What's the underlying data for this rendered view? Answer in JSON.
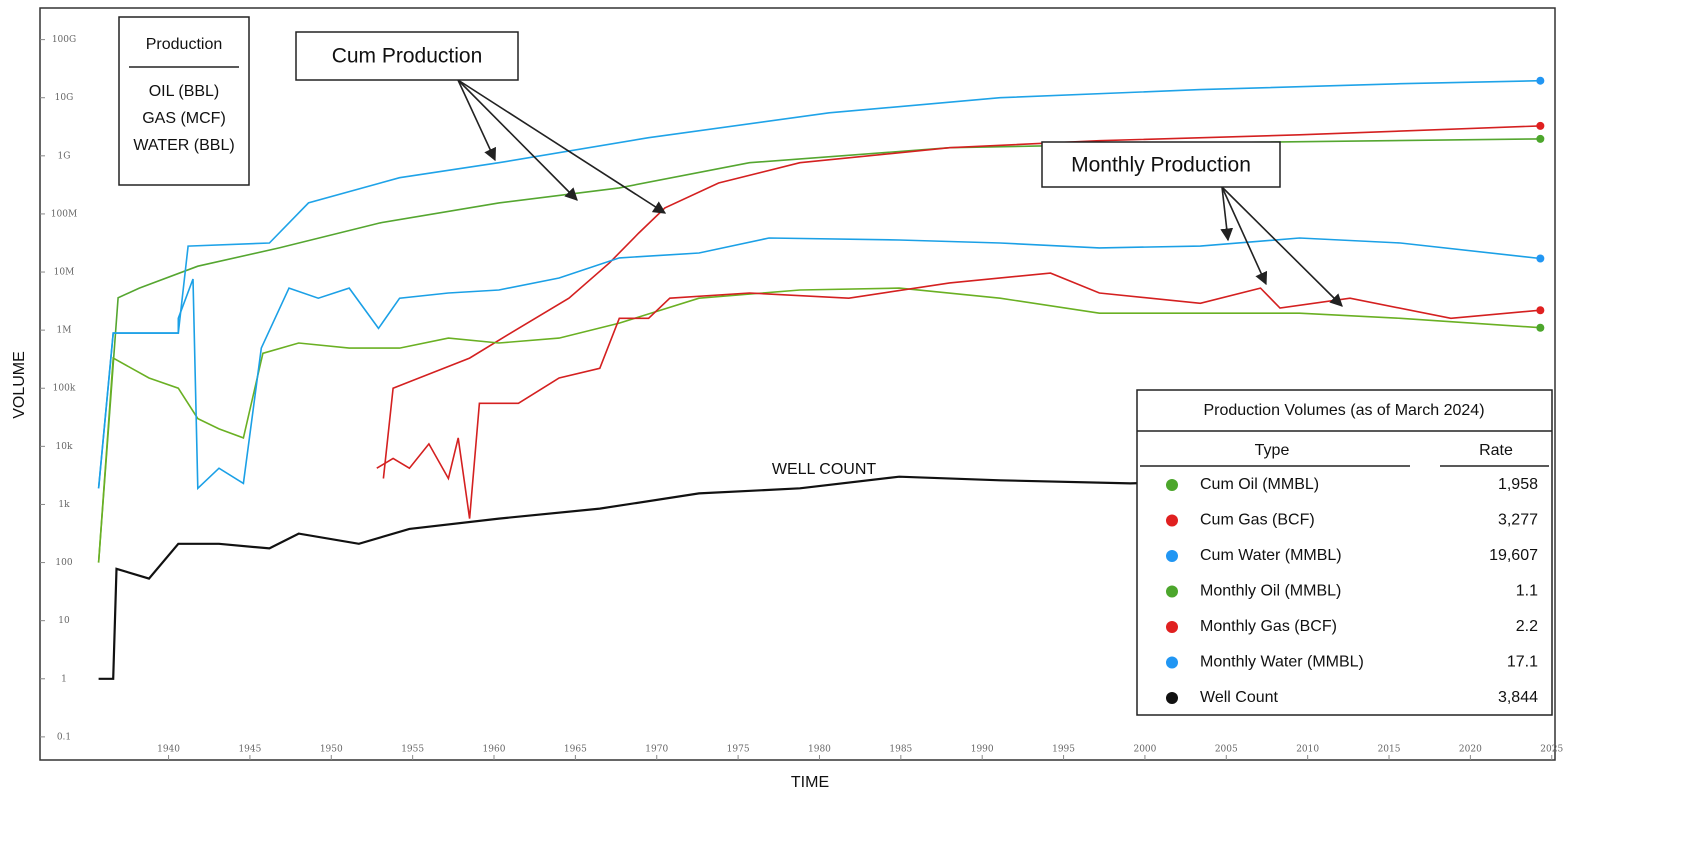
{
  "chart_data": {
    "type": "line",
    "y_label": "VOLUME",
    "x_label": "TIME",
    "log_y": true,
    "xlim": [
      1932.1,
      2025.2
    ],
    "ylim": [
      0.04,
      350000000000
    ],
    "xticks": [
      1940,
      1945,
      1950,
      1955,
      1960,
      1965,
      1970,
      1975,
      1980,
      1985,
      1990,
      1995,
      2000,
      2005,
      2010,
      2015,
      2020,
      2025
    ],
    "yticks": [
      0.1,
      1,
      10,
      100,
      {
        "value": 1000,
        "label": "1k"
      },
      {
        "value": 10000,
        "label": "10k"
      },
      {
        "value": 100000,
        "label": "100k"
      },
      {
        "value": 1000000,
        "label": "1M"
      },
      {
        "value": 10000000,
        "label": "10M"
      },
      {
        "value": 100000000,
        "label": "100M"
      },
      {
        "value": 1000000000,
        "label": "1G"
      },
      {
        "value": 10000000000,
        "label": "10G"
      },
      {
        "value": 100000000000,
        "label": "100G"
      }
    ],
    "legend": {
      "title": "Production",
      "items": [
        {
          "label": "OIL (BBL)",
          "color": "#a9c23f"
        },
        {
          "label": "GAS (MCF)",
          "color": "#b01818"
        },
        {
          "label": "WATER (BBL)",
          "color": "#1e9ee0"
        }
      ]
    },
    "annotations": [
      {
        "text": "Cum Production"
      },
      {
        "text": "Monthly Production"
      },
      {
        "text": "WELL COUNT"
      }
    ],
    "series": [
      {
        "name": "Cum Oil (MMBL)",
        "color": "#55a630",
        "marker_color": "#4ca62c",
        "x": [
          1935.7,
          1936.9,
          1938.2,
          1941.8,
          1946.8,
          1953,
          1960.3,
          1967.7,
          1975.7,
          1988,
          2003.4,
          2024.3
        ],
        "values": [
          100,
          3600000,
          5300000,
          12600000,
          26000000,
          70000000,
          155000000,
          280000000,
          760000000,
          1380000000,
          1670000000,
          1958000000
        ]
      },
      {
        "name": "Cum Gas (BCF)",
        "color": "#d42020",
        "marker_color": "#e02020",
        "x": [
          1953.2,
          1953.8,
          1958.5,
          1961.5,
          1964.6,
          1967.1,
          1968.9,
          1970.5,
          1973.8,
          1978.8,
          1988,
          1997.2,
          2009.5,
          2024.3
        ],
        "values": [
          2800,
          100000,
          330000,
          1070000,
          3550000,
          14400000,
          47000000,
          127000000,
          340000000,
          760000000,
          1380000000,
          1820000000,
          2300000000,
          3277000000
        ]
      },
      {
        "name": "Cum Water (MMBL)",
        "color": "#1fa3e8",
        "marker_color": "#2196f3",
        "x": [
          1935.7,
          1936.6,
          1940.6,
          1941.2,
          1946.2,
          1948.6,
          1954.2,
          1960.3,
          1969.5,
          1980.6,
          1991.1,
          2003.4,
          2015.7,
          2024.3
        ],
        "values": [
          1900,
          890000,
          890000,
          28000000,
          31600000,
          155000000,
          420000000,
          760000000,
          2050000000,
          5500000000,
          10000000000,
          13800000000,
          17400000000,
          19607000000
        ]
      },
      {
        "name": "Monthly Oil (MMBL)",
        "color": "#6ab023",
        "marker_color": "#4ca62c",
        "x": [
          1935.7,
          1936.6,
          1938.8,
          1940.6,
          1941.8,
          1943.1,
          1944.6,
          1945.8,
          1948,
          1951.1,
          1954.2,
          1957.2,
          1960.3,
          1964,
          1967.7,
          1972.6,
          1978.8,
          1984.9,
          1991.1,
          1997.2,
          2003.4,
          2009.5,
          2015.7,
          2024.3
        ],
        "values": [
          100,
          330000,
          150000,
          100000,
          30000,
          20000,
          14000,
          400000,
          600000,
          490000,
          490000,
          730000,
          600000,
          730000,
          1320000,
          3550000,
          4900000,
          5300000,
          3550000,
          1960000,
          1960000,
          1960000,
          1600000,
          1100000
        ]
      },
      {
        "name": "Monthly Gas (BCF)",
        "color": "#d42020",
        "marker_color": "#e02020",
        "x": [
          1952.8,
          1953.8,
          1954.8,
          1956,
          1957.2,
          1957.8,
          1958.5,
          1959.1,
          1961.5,
          1964,
          1966.5,
          1967.7,
          1969.5,
          1970.8,
          1975.7,
          1981.8,
          1988,
          1994.2,
          1997.2,
          2003.4,
          2007.1,
          2008.3,
          2012.6,
          2018.8,
          2024.3
        ],
        "values": [
          4200,
          6200,
          4200,
          11000,
          2800,
          14000,
          570,
          55000,
          55000,
          150000,
          220000,
          1600000,
          1600000,
          3550000,
          4350000,
          3550000,
          6500000,
          9600000,
          4350000,
          2900000,
          5300000,
          2400000,
          3550000,
          1600000,
          2200000
        ]
      },
      {
        "name": "Monthly Water (MMBL)",
        "color": "#1ba0e6",
        "marker_color": "#2196f3",
        "x": [
          1935.7,
          1936.6,
          1940.6,
          1940.6,
          1941.5,
          1941.8,
          1943.1,
          1944.6,
          1945.7,
          1947.4,
          1949.2,
          1951.1,
          1952.9,
          1954.2,
          1957.2,
          1960.3,
          1964,
          1967.7,
          1972.6,
          1976.9,
          1984.9,
          1991.1,
          1997.2,
          2003.4,
          2009.5,
          2015.7,
          2024.3
        ],
        "values": [
          1900,
          890000,
          890000,
          1600000,
          7600000,
          1900,
          4200,
          2300,
          490000,
          5300000,
          3550000,
          5300000,
          1070000,
          3550000,
          4350000,
          4900000,
          7900000,
          17500000,
          21300000,
          38600000,
          35600000,
          31600000,
          26000000,
          28000000,
          38600000,
          31600000,
          17100000
        ]
      },
      {
        "name": "Well Count",
        "color": "#111111",
        "marker_color": "#111111",
        "x": [
          1935.7,
          1936.6,
          1936.8,
          1938.8,
          1940.6,
          1943.1,
          1946.2,
          1948,
          1951.7,
          1954.8,
          1960.3,
          1966.5,
          1972.6,
          1978.8,
          1984.9,
          1991.1,
          1999.1,
          2024.3
        ],
        "values": [
          1,
          1,
          78,
          53,
          210,
          210,
          175,
          315,
          210,
          380,
          570,
          850,
          1550,
          1900,
          3000,
          2600,
          2300,
          3844
        ]
      }
    ],
    "table": {
      "title": "Production Volumes (as of March 2024)",
      "headers": [
        "Type",
        "Rate"
      ],
      "rates": [
        "1,958",
        "3,277",
        "19,607",
        "1.1",
        "2.2",
        "17.1",
        "3,844"
      ]
    }
  }
}
